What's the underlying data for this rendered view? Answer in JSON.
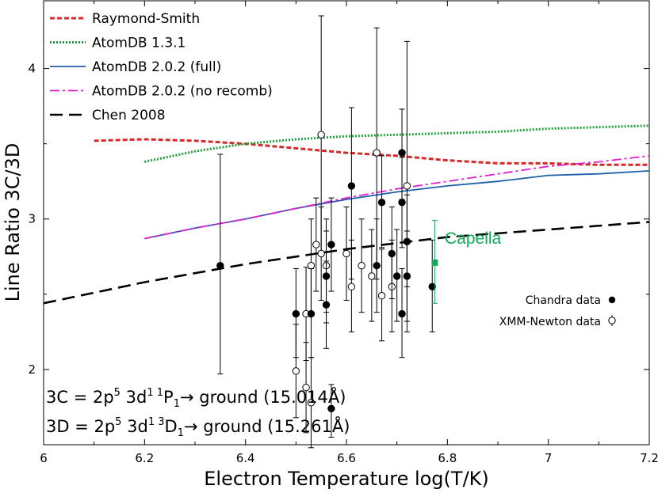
{
  "chart_data": {
    "type": "scatter",
    "xlabel": "Electron Temperature log(T/K)",
    "ylabel": "Line Ratio 3C/3D",
    "xlim": [
      6.0,
      7.2
    ],
    "ylim": [
      1.5,
      4.45
    ],
    "x_ticks": [
      6.0,
      6.2,
      6.4,
      6.6,
      6.8,
      7.0,
      7.2
    ],
    "x_tick_labels": [
      "6",
      "6.2",
      "6.4",
      "6.6",
      "6.8",
      "7",
      "7.2"
    ],
    "y_ticks": [
      2,
      3,
      4
    ],
    "y_tick_labels": [
      "2",
      "3",
      "4"
    ],
    "legend_position": "top-left",
    "series": [
      {
        "name": "Raymond-Smith",
        "style": "dashed-short",
        "color": "#d62a2a",
        "x": [
          6.1,
          6.2,
          6.3,
          6.4,
          6.5,
          6.6,
          6.7,
          6.8,
          6.9,
          7.0,
          7.1,
          7.2
        ],
        "y": [
          3.52,
          3.53,
          3.52,
          3.5,
          3.47,
          3.44,
          3.42,
          3.39,
          3.37,
          3.37,
          3.36,
          3.36
        ]
      },
      {
        "name": "AtomDB  1.3.1",
        "style": "dotted",
        "color": "#1f9e3c",
        "x": [
          6.2,
          6.3,
          6.4,
          6.5,
          6.6,
          6.7,
          6.8,
          6.9,
          7.0,
          7.1,
          7.2
        ],
        "y": [
          3.38,
          3.45,
          3.5,
          3.53,
          3.55,
          3.56,
          3.57,
          3.58,
          3.6,
          3.61,
          3.62
        ]
      },
      {
        "name": "AtomDB 2.0.2 (full)",
        "style": "solid",
        "color": "#1f5fa8",
        "x": [
          6.2,
          6.3,
          6.4,
          6.5,
          6.6,
          6.7,
          6.8,
          6.9,
          7.0,
          7.1,
          7.2
        ],
        "y": [
          2.87,
          2.94,
          3.0,
          3.07,
          3.13,
          3.18,
          3.22,
          3.25,
          3.29,
          3.3,
          3.32
        ]
      },
      {
        "name": "AtomDB 2.0.2 (no recomb)",
        "style": "dash-dot",
        "color": "#e020d0",
        "x": [
          6.2,
          6.3,
          6.4,
          6.5,
          6.6,
          6.7,
          6.8,
          6.9,
          7.0,
          7.1,
          7.2
        ],
        "y": [
          2.87,
          2.94,
          3.0,
          3.07,
          3.14,
          3.2,
          3.25,
          3.3,
          3.35,
          3.38,
          3.42
        ]
      },
      {
        "name": "Chen 2008",
        "style": "dashed-long",
        "color": "#000000",
        "x": [
          6.0,
          6.2,
          6.4,
          6.6,
          6.8,
          7.0,
          7.2
        ],
        "y": [
          2.44,
          2.58,
          2.7,
          2.8,
          2.88,
          2.93,
          2.98
        ]
      }
    ],
    "chandra_data": {
      "label": "Chandra data",
      "points": [
        {
          "x": 6.35,
          "y": 2.69,
          "lo": 1.97,
          "hi": 3.43
        },
        {
          "x": 6.5,
          "y": 2.37,
          "lo": 2.08,
          "hi": 2.67
        },
        {
          "x": 6.53,
          "y": 2.37,
          "lo": 2.08,
          "hi": 2.67
        },
        {
          "x": 6.56,
          "y": 2.62,
          "lo": 2.31,
          "hi": 2.92
        },
        {
          "x": 6.56,
          "y": 2.43,
          "lo": 2.14,
          "hi": 2.72
        },
        {
          "x": 6.57,
          "y": 2.83,
          "lo": 2.52,
          "hi": 3.14
        },
        {
          "x": 6.57,
          "y": 1.74,
          "lo": 1.55,
          "hi": 1.9
        },
        {
          "x": 6.61,
          "y": 3.22,
          "lo": 2.6,
          "hi": 3.74
        },
        {
          "x": 6.66,
          "y": 2.69,
          "lo": 2.38,
          "hi": 3.0
        },
        {
          "x": 6.67,
          "y": 3.11,
          "lo": 2.81,
          "hi": 3.42
        },
        {
          "x": 6.69,
          "y": 2.77,
          "lo": 2.47,
          "hi": 3.08
        },
        {
          "x": 6.7,
          "y": 2.62,
          "lo": 2.32,
          "hi": 2.93
        },
        {
          "x": 6.71,
          "y": 3.44,
          "lo": 3.13,
          "hi": 3.73
        },
        {
          "x": 6.71,
          "y": 3.11,
          "lo": 2.81,
          "hi": 3.41
        },
        {
          "x": 6.71,
          "y": 2.37,
          "lo": 2.08,
          "hi": 2.67
        },
        {
          "x": 6.72,
          "y": 2.85,
          "lo": 2.55,
          "hi": 3.16
        },
        {
          "x": 6.72,
          "y": 2.62,
          "lo": 2.32,
          "hi": 2.92
        },
        {
          "x": 6.77,
          "y": 2.55,
          "lo": 2.25,
          "hi": 2.86
        }
      ]
    },
    "xmm_data": {
      "label": "XMM-Newton data",
      "points": [
        {
          "x": 6.5,
          "y": 1.99,
          "lo": 1.68,
          "hi": 2.3
        },
        {
          "x": 6.52,
          "y": 2.37,
          "lo": 2.06,
          "hi": 2.68
        },
        {
          "x": 6.52,
          "y": 1.88,
          "lo": 1.58,
          "hi": 2.18
        },
        {
          "x": 6.53,
          "y": 2.69,
          "lo": 2.38,
          "hi": 3.0
        },
        {
          "x": 6.53,
          "y": 1.78,
          "lo": 1.48,
          "hi": 2.08
        },
        {
          "x": 6.54,
          "y": 2.83,
          "lo": 2.52,
          "hi": 3.14
        },
        {
          "x": 6.55,
          "y": 3.56,
          "lo": 2.76,
          "hi": 4.35
        },
        {
          "x": 6.55,
          "y": 2.77,
          "lo": 2.46,
          "hi": 3.08
        },
        {
          "x": 6.56,
          "y": 2.69,
          "lo": 2.38,
          "hi": 3.0
        },
        {
          "x": 6.6,
          "y": 2.77,
          "lo": 2.46,
          "hi": 3.08
        },
        {
          "x": 6.61,
          "y": 2.55,
          "lo": 2.25,
          "hi": 2.86
        },
        {
          "x": 6.63,
          "y": 2.69,
          "lo": 2.38,
          "hi": 3.0
        },
        {
          "x": 6.65,
          "y": 2.62,
          "lo": 2.32,
          "hi": 2.93
        },
        {
          "x": 6.66,
          "y": 3.44,
          "lo": 2.6,
          "hi": 4.27
        },
        {
          "x": 6.67,
          "y": 2.49,
          "lo": 2.19,
          "hi": 2.8
        },
        {
          "x": 6.69,
          "y": 2.55,
          "lo": 2.25,
          "hi": 2.86
        },
        {
          "x": 6.72,
          "y": 3.22,
          "lo": 2.25,
          "hi": 4.18
        }
      ]
    },
    "capella": {
      "label": "Capella",
      "x": 6.775,
      "y": 2.71,
      "lo": 2.44,
      "hi": 2.99,
      "color": "#13a85a"
    },
    "annotations": {
      "line1": {
        "prefix": "3C = 2p",
        "sup1": "5",
        "mid": " 3d",
        "sup2": "1 1",
        "term": "P",
        "sub": "1",
        "suffix": "→ ground (15.014Å)"
      },
      "line2": {
        "prefix": "3D = 2p",
        "sup1": "5",
        "mid": " 3d",
        "sup2": "1 3",
        "term": "D",
        "sub": "1",
        "suffix": "→ ground (15.261Å)"
      }
    }
  }
}
